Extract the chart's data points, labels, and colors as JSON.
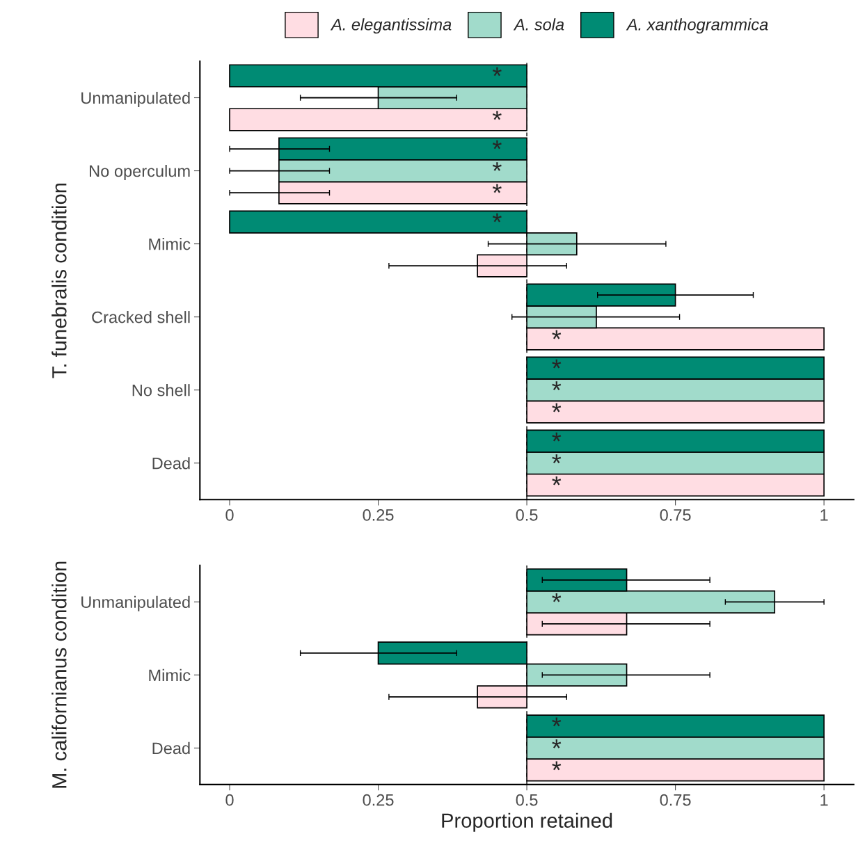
{
  "chart_data": [
    {
      "type": "bar",
      "orientation": "horizontal",
      "ylabel": "T. funebralis condition",
      "categories": [
        "Unmanipulated",
        "No operculum",
        "Mimic",
        "Cracked shell",
        "No shell",
        "Dead"
      ],
      "xlim": [
        -0.05,
        1.05
      ],
      "xticks": [
        0,
        0.25,
        0.5,
        0.75,
        1
      ],
      "legend": "top",
      "tick_labels": true,
      "ref_lines": [
        {
          "axis": "x",
          "value": 0.5,
          "line_style": "dashed",
          "color": "#000000"
        }
      ],
      "series": [
        {
          "name": "A. elegantissima",
          "color": "#ffdde3",
          "base": [
            0.5,
            0.5,
            0.5,
            0.5,
            0.5,
            0.5
          ],
          "values": [
            -0.5,
            -0.417,
            -0.083,
            0.5,
            0.5,
            0.5
          ],
          "errors": [
            null,
            [
              0,
              0.168
            ],
            [
              0.268,
              0.567
            ],
            null,
            null,
            null
          ],
          "value_labels": [
            "*",
            "*",
            null,
            "*",
            "*",
            "*"
          ]
        },
        {
          "name": "A. sola",
          "color": "#a1dbcb",
          "base": [
            0.5,
            0.5,
            0.5,
            0.5,
            0.5,
            0.5
          ],
          "values": [
            -0.25,
            -0.417,
            0.084,
            0.117,
            0.5,
            0.5
          ],
          "errors": [
            [
              0.119,
              0.382
            ],
            [
              0,
              0.168
            ],
            [
              0.435,
              0.734
            ],
            [
              0.475,
              0.757
            ],
            null,
            null
          ],
          "value_labels": [
            null,
            "*",
            null,
            null,
            "*",
            "*"
          ]
        },
        {
          "name": "A. xanthogrammica",
          "color": "#008b74",
          "base": [
            0.5,
            0.5,
            0.5,
            0.5,
            0.5,
            0.5
          ],
          "values": [
            -0.5,
            -0.417,
            -0.5,
            0.25,
            0.5,
            0.5
          ],
          "errors": [
            null,
            [
              0,
              0.168
            ],
            null,
            [
              0.619,
              0.881
            ],
            null,
            null
          ],
          "value_labels": [
            "*",
            "*",
            "*",
            null,
            "*",
            "*"
          ]
        }
      ]
    },
    {
      "type": "bar",
      "orientation": "horizontal",
      "ylabel": "M. californianus condition",
      "xlabel": "Proportion retained",
      "categories": [
        "Unmanipulated",
        "Mimic",
        "Dead"
      ],
      "xlim": [
        -0.05,
        1.05
      ],
      "xticks": [
        0,
        0.25,
        0.5,
        0.75,
        1
      ],
      "ref_lines": [
        {
          "axis": "x",
          "value": 0.5,
          "line_style": "dashed",
          "color": "#000000"
        }
      ],
      "series": [
        {
          "color": "#ffdde3",
          "base": [
            0.5,
            0.5,
            0.5
          ],
          "values": [
            0.168,
            -0.083,
            0.5
          ],
          "errors": [
            [
              0.526,
              0.808
            ],
            [
              0.268,
              0.567
            ],
            null
          ],
          "value_labels": [
            null,
            null,
            "*"
          ]
        },
        {
          "color": "#a1dbcb",
          "base": [
            0.5,
            0.5,
            0.5
          ],
          "values": [
            0.417,
            0.168,
            0.5
          ],
          "errors": [
            [
              0.834,
              1
            ],
            [
              0.526,
              0.808
            ],
            null
          ],
          "value_labels": [
            "*",
            null,
            "*"
          ]
        },
        {
          "color": "#008b74",
          "base": [
            0.5,
            0.5,
            0.5
          ],
          "values": [
            0.168,
            -0.25,
            0.5
          ],
          "errors": [
            [
              0.526,
              0.808
            ],
            [
              0.119,
              0.382
            ],
            null
          ],
          "value_labels": [
            null,
            null,
            "*"
          ]
        }
      ]
    }
  ]
}
